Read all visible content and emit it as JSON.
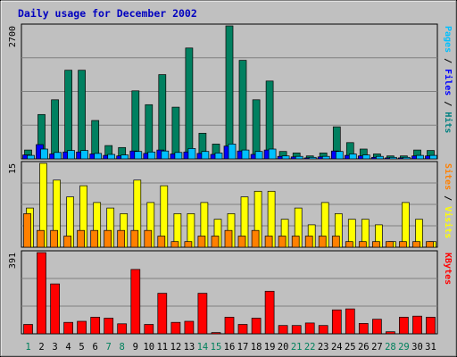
{
  "chart_data": {
    "type": "bar",
    "title": "Daily usage for December 2002",
    "x": [
      1,
      2,
      3,
      4,
      5,
      6,
      7,
      8,
      9,
      10,
      11,
      12,
      13,
      14,
      15,
      16,
      17,
      18,
      19,
      20,
      21,
      22,
      23,
      24,
      25,
      26,
      27,
      28,
      29,
      30,
      31
    ],
    "x_label_colors": [
      "#00805c",
      "#000000",
      "#000000",
      "#000000",
      "#000000",
      "#000000",
      "#00805c",
      "#00805c",
      "#000000",
      "#000000",
      "#000000",
      "#000000",
      "#000000",
      "#00805c",
      "#00805c",
      "#000000",
      "#000000",
      "#000000",
      "#000000",
      "#000000",
      "#00805c",
      "#00805c",
      "#000000",
      "#000000",
      "#000000",
      "#000000",
      "#000000",
      "#00805c",
      "#00805c",
      "#000000",
      "#000000"
    ],
    "panels": [
      {
        "id": "hits",
        "max_label": "2700",
        "ymax": 2700,
        "right_label": [
          "Pages",
          " / ",
          "Files",
          " / ",
          "Hits"
        ],
        "right_label_colors": [
          "#00C0FF",
          "#000000",
          "#0000FF",
          "#000000",
          "#008080"
        ],
        "series": [
          {
            "name": "Hits",
            "color": "#008060",
            "values": [
              180,
              900,
              1200,
              1800,
              1800,
              780,
              270,
              230,
              1380,
              1100,
              1710,
              1050,
              2250,
              520,
              300,
              2700,
              2000,
              1200,
              1580,
              150,
              120,
              60,
              120,
              650,
              330,
              200,
              100,
              60,
              60,
              180,
              170
            ]
          },
          {
            "name": "Files",
            "color": "#0000FF",
            "values": [
              80,
              290,
              100,
              140,
              140,
              100,
              70,
              60,
              160,
              110,
              180,
              100,
              140,
              110,
              90,
              260,
              160,
              90,
              180,
              50,
              40,
              20,
              40,
              160,
              70,
              60,
              30,
              20,
              20,
              60,
              60
            ]
          },
          {
            "name": "Pages",
            "color": "#00C0FF",
            "values": [
              70,
              200,
              130,
              170,
              170,
              110,
              90,
              80,
              150,
              140,
              160,
              130,
              210,
              150,
              120,
              300,
              180,
              150,
              200,
              60,
              50,
              30,
              50,
              150,
              100,
              80,
              50,
              30,
              30,
              70,
              70
            ]
          }
        ]
      },
      {
        "id": "visits",
        "max_label": "15",
        "ymax": 15,
        "right_label": [
          "Sites",
          " / ",
          "Visits"
        ],
        "right_label_colors": [
          "#FF8000",
          "#000000",
          "#FFFF00"
        ],
        "series": [
          {
            "name": "Visits",
            "color": "#FFFF00",
            "values": [
              7,
              15,
              12,
              9,
              11,
              8,
              7,
              6,
              12,
              8,
              11,
              6,
              6,
              8,
              5,
              6,
              9,
              10,
              10,
              5,
              7,
              4,
              8,
              6,
              5,
              5,
              4,
              1,
              8,
              5,
              1
            ]
          },
          {
            "name": "Sites",
            "color": "#FF8000",
            "values": [
              6,
              3,
              3,
              2,
              3,
              3,
              3,
              3,
              3,
              3,
              2,
              1,
              1,
              2,
              2,
              3,
              2,
              3,
              2,
              2,
              2,
              2,
              2,
              2,
              1,
              1,
              1,
              1,
              1,
              1,
              1
            ]
          }
        ]
      },
      {
        "id": "kbytes",
        "max_label": "391",
        "ymax": 391,
        "right_label": [
          "KBytes"
        ],
        "right_label_colors": [
          "#FF0000"
        ],
        "series": [
          {
            "name": "KBytes",
            "color": "#FF0000",
            "values": [
              45,
              391,
              240,
              55,
              60,
              80,
              75,
              48,
              310,
              45,
              195,
              55,
              60,
              195,
              6,
              80,
              45,
              75,
              205,
              40,
              40,
              52,
              40,
              115,
              120,
              50,
              70,
              10,
              80,
              85,
              80
            ]
          }
        ]
      }
    ]
  }
}
